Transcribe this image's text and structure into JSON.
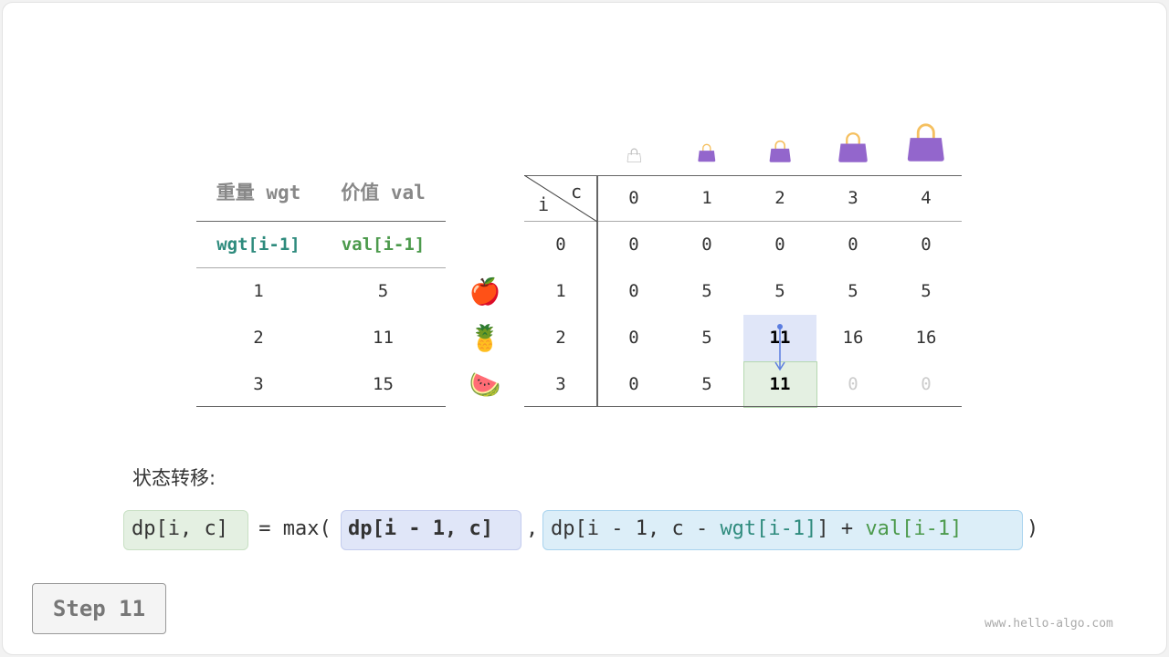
{
  "items_table": {
    "headers": [
      "重量 wgt",
      "价值 val"
    ],
    "subheaders": [
      "wgt[i-1]",
      "val[i-1]"
    ],
    "rows": [
      [
        "1",
        "5"
      ],
      [
        "2",
        "11"
      ],
      [
        "3",
        "15"
      ]
    ],
    "fruits": [
      "apple-icon",
      "pineapple-icon",
      "watermelon-icon"
    ]
  },
  "dp_table": {
    "corner_row": "i",
    "corner_col": "c",
    "col_headers": [
      "0",
      "1",
      "2",
      "3",
      "4"
    ],
    "row_headers": [
      "0",
      "1",
      "2",
      "3"
    ],
    "rows": [
      [
        "0",
        "0",
        "0",
        "0",
        "0"
      ],
      [
        "0",
        "5",
        "5",
        "5",
        "5"
      ],
      [
        "0",
        "5",
        "11",
        "16",
        "16"
      ],
      [
        "0",
        "5",
        "11",
        "0",
        "0"
      ]
    ],
    "highlight_source": {
      "row": 2,
      "col": 2,
      "color": "#e0e6f8"
    },
    "highlight_target": {
      "row": 3,
      "col": 2,
      "color": "#e4f0e2"
    }
  },
  "transition_label": "状态转移:",
  "formula": {
    "lhs": "dp[i, c]",
    "eq": " = max(",
    "arg1": "dp[i - 1, c]",
    "comma": ",",
    "arg2_a": "dp[i - 1, c - ",
    "arg2_wgt": "wgt[i-1]",
    "arg2_b": "] + ",
    "arg2_val": "val[i-1]",
    "close": ")"
  },
  "step_label": "Step 11",
  "watermark": "www.hello-algo.com",
  "colors": {
    "teal": "#2e8b7d",
    "green": "#4c9a4c",
    "bag": "#9366cc",
    "handle": "#f5c060"
  }
}
